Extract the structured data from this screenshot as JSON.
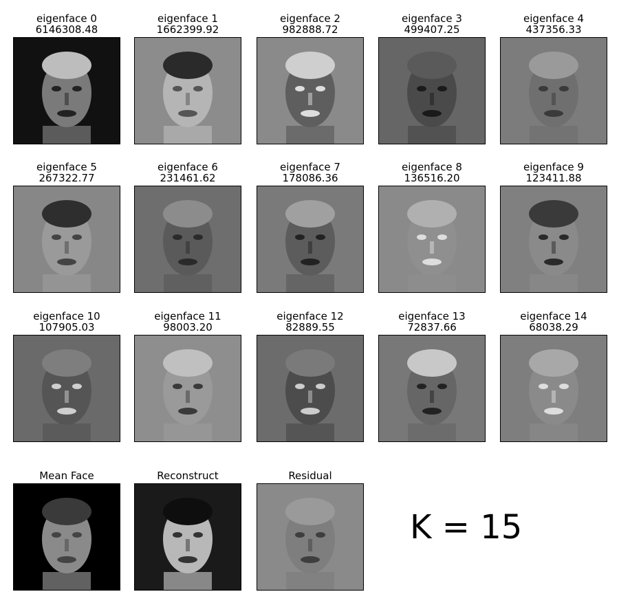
{
  "eigenfaces": [
    {
      "label": "eigenface 0",
      "value": "6146308.48",
      "bg": "#111111",
      "face": "#7a7a7a",
      "hair": "#bdbdbd",
      "feature": "#222222"
    },
    {
      "label": "eigenface 1",
      "value": "1662399.92",
      "bg": "#8c8c8c",
      "face": "#b5b5b5",
      "hair": "#2a2a2a",
      "feature": "#555555"
    },
    {
      "label": "eigenface 2",
      "value": "982888.72",
      "bg": "#8a8a8a",
      "face": "#5e5e5e",
      "hair": "#cfcfcf",
      "feature": "#dddddd"
    },
    {
      "label": "eigenface 3",
      "value": "499407.25",
      "bg": "#666666",
      "face": "#4a4a4a",
      "hair": "#5a5a5a",
      "feature": "#1a1a1a"
    },
    {
      "label": "eigenface 4",
      "value": "437356.33",
      "bg": "#7c7c7c",
      "face": "#6f6f6f",
      "hair": "#9a9a9a",
      "feature": "#3a3a3a"
    },
    {
      "label": "eigenface 5",
      "value": "267322.77",
      "bg": "#878787",
      "face": "#9a9a9a",
      "hair": "#2e2e2e",
      "feature": "#444444"
    },
    {
      "label": "eigenface 6",
      "value": "231461.62",
      "bg": "#6e6e6e",
      "face": "#5a5a5a",
      "hair": "#8c8c8c",
      "feature": "#2a2a2a"
    },
    {
      "label": "eigenface 7",
      "value": "178086.36",
      "bg": "#7a7a7a",
      "face": "#5c5c5c",
      "hair": "#a0a0a0",
      "feature": "#222222"
    },
    {
      "label": "eigenface 8",
      "value": "136516.20",
      "bg": "#8a8a8a",
      "face": "#8f8f8f",
      "hair": "#b0b0b0",
      "feature": "#dddddd"
    },
    {
      "label": "eigenface 9",
      "value": "123411.88",
      "bg": "#808080",
      "face": "#8a8a8a",
      "hair": "#3a3a3a",
      "feature": "#2a2a2a"
    },
    {
      "label": "eigenface 10",
      "value": "107905.03",
      "bg": "#6a6a6a",
      "face": "#555555",
      "hair": "#7e7e7e",
      "feature": "#cfcfcf"
    },
    {
      "label": "eigenface 11",
      "value": "98003.20",
      "bg": "#8e8e8e",
      "face": "#9a9a9a",
      "hair": "#c0c0c0",
      "feature": "#3a3a3a"
    },
    {
      "label": "eigenface 12",
      "value": "82889.55",
      "bg": "#6c6c6c",
      "face": "#4c4c4c",
      "hair": "#7a7a7a",
      "feature": "#cccccc"
    },
    {
      "label": "eigenface 13",
      "value": "72837.66",
      "bg": "#787878",
      "face": "#666666",
      "hair": "#c8c8c8",
      "feature": "#222222"
    },
    {
      "label": "eigenface 14",
      "value": "68038.29",
      "bg": "#7e7e7e",
      "face": "#8a8a8a",
      "hair": "#a8a8a8",
      "feature": "#dddddd"
    }
  ],
  "bottom": [
    {
      "label": "Mean Face",
      "bg": "#000000",
      "face": "#8a8a8a",
      "hair": "#3a3a3a",
      "feature": "#444444"
    },
    {
      "label": "Reconstruct",
      "bg": "#1a1a1a",
      "face": "#b8b8b8",
      "hair": "#0e0e0e",
      "feature": "#333333"
    },
    {
      "label": "Residual",
      "bg": "#8a8a8a",
      "face": "#7e7e7e",
      "hair": "#9a9a9a",
      "feature": "#3e3e3e"
    }
  ],
  "k_label": "K = 15"
}
